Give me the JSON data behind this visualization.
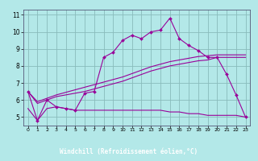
{
  "xlabel": "Windchill (Refroidissement éolien,°C)",
  "bg_color": "#b3e8e8",
  "grid_color": "#88bbbb",
  "line_color": "#990099",
  "xlabel_bg": "#330066",
  "xlabel_fg": "#ffffff",
  "ylim": [
    4.5,
    11.3
  ],
  "xlim": [
    -0.5,
    23.5
  ],
  "yticks": [
    5,
    6,
    7,
    8,
    9,
    10,
    11
  ],
  "xticks": [
    0,
    1,
    2,
    3,
    4,
    5,
    6,
    7,
    8,
    9,
    10,
    11,
    12,
    13,
    14,
    15,
    16,
    17,
    18,
    19,
    20,
    21,
    22,
    23
  ],
  "series1_x": [
    0,
    1,
    2,
    3,
    4,
    5,
    6,
    7,
    8,
    9,
    10,
    11,
    12,
    13,
    14,
    15,
    16,
    17,
    18,
    19,
    20,
    21,
    22,
    23
  ],
  "series1_y": [
    6.5,
    4.8,
    6.0,
    5.6,
    5.5,
    5.4,
    6.4,
    6.5,
    8.5,
    8.8,
    9.5,
    9.8,
    9.6,
    10.0,
    10.1,
    10.8,
    9.6,
    9.2,
    8.9,
    8.5,
    8.5,
    7.5,
    6.3,
    5.0
  ],
  "series2_x": [
    0,
    1,
    2,
    3,
    4,
    5,
    6,
    7,
    8,
    9,
    10,
    11,
    12,
    13,
    14,
    15,
    16,
    17,
    18,
    19,
    20,
    21,
    22,
    23
  ],
  "series2_y": [
    5.5,
    4.8,
    5.5,
    5.6,
    5.5,
    5.4,
    5.4,
    5.4,
    5.4,
    5.4,
    5.4,
    5.4,
    5.4,
    5.4,
    5.4,
    5.3,
    5.3,
    5.2,
    5.2,
    5.1,
    5.1,
    5.1,
    5.1,
    5.0
  ],
  "series3_x": [
    0,
    1,
    2,
    3,
    4,
    5,
    6,
    7,
    8,
    9,
    10,
    11,
    12,
    13,
    14,
    15,
    16,
    17,
    18,
    19,
    20,
    23
  ],
  "series3_y": [
    6.5,
    5.8,
    6.0,
    6.2,
    6.3,
    6.4,
    6.5,
    6.65,
    6.8,
    6.95,
    7.1,
    7.3,
    7.5,
    7.7,
    7.85,
    8.0,
    8.1,
    8.2,
    8.3,
    8.35,
    8.5,
    8.5
  ],
  "series4_x": [
    0,
    1,
    2,
    3,
    4,
    5,
    6,
    7,
    8,
    9,
    10,
    11,
    12,
    13,
    14,
    15,
    16,
    17,
    18,
    19,
    20,
    23
  ],
  "series4_y": [
    6.5,
    5.9,
    6.1,
    6.3,
    6.45,
    6.6,
    6.75,
    6.9,
    7.05,
    7.2,
    7.35,
    7.55,
    7.75,
    7.95,
    8.1,
    8.25,
    8.35,
    8.45,
    8.55,
    8.6,
    8.65,
    8.65
  ]
}
